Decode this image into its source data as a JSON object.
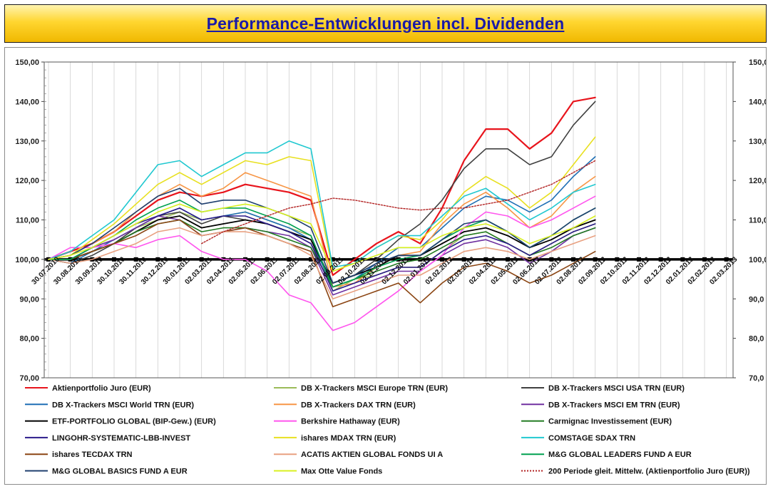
{
  "title": "Performance-Entwicklungen incl. Dividenden",
  "chart_data": {
    "type": "line",
    "ylim": [
      70,
      150
    ],
    "y_ticks_left": [
      "70,00",
      "80,00",
      "90,00",
      "100,00",
      "110,00",
      "120,00",
      "130,00",
      "140,00",
      "150,00"
    ],
    "y_ticks_right": [
      "70,0",
      "80,0",
      "90,0",
      "100,0",
      "110,0",
      "120,0",
      "130,0",
      "140,0",
      "150,0"
    ],
    "x_dates": [
      "30.07.2010",
      "30.08.2010",
      "30.09.2010",
      "30.10.2010",
      "30.11.2010",
      "30.12.2010",
      "30.01.2011",
      "02.03.2011",
      "02.04.2011",
      "02.05.2011",
      "02.06.2011",
      "02.07.2011",
      "02.08.2011",
      "02.09.2011",
      "02.10.2011",
      "02.11.2011",
      "02.12.2011",
      "02.01.2012",
      "02.02.2012",
      "02.03.2012",
      "02.04.2012",
      "02.05.2012",
      "02.06.2012",
      "02.07.2012",
      "02.08.2012",
      "02.09.2012",
      "02.10.2012",
      "02.11.2012",
      "02.12.2012",
      "02.01.2013",
      "02.02.2013",
      "02.03.2013"
    ],
    "grid": "vertical",
    "baseline": 100,
    "legend_position": "bottom",
    "series": [
      {
        "name": "Aktienportfolio Juro (EUR)",
        "color": "#e8141c",
        "width": 2.2,
        "values": [
          100,
          102,
          104,
          107,
          111,
          115,
          117,
          116,
          117,
          119,
          118,
          117,
          115,
          96,
          100,
          104,
          107,
          104,
          113,
          125,
          133,
          133,
          128,
          132,
          140,
          141,
          null,
          null,
          null,
          null,
          null,
          null
        ]
      },
      {
        "name": "DB X-Trackers MSCI Europe TRN (EUR)",
        "color": "#9bbb59",
        "width": 1.6,
        "values": [
          100,
          100,
          103,
          105,
          108,
          110,
          112,
          110,
          111,
          112,
          110,
          108,
          106,
          92,
          95,
          96,
          98,
          98,
          102,
          106,
          107,
          104,
          101,
          104,
          107,
          109,
          null,
          null,
          null,
          null,
          null,
          null
        ]
      },
      {
        "name": "DB X-Trackers MSCI USA TRN (EUR)",
        "color": "#404040",
        "width": 1.6,
        "values": [
          100,
          99,
          101,
          104,
          108,
          111,
          112,
          109,
          111,
          110,
          109,
          107,
          104,
          94,
          96,
          100,
          105,
          109,
          115,
          123,
          128,
          128,
          124,
          126,
          134,
          140,
          null,
          null,
          null,
          null,
          null,
          null
        ]
      },
      {
        "name": "DB X-Trackers MSCI World TRN (EUR)",
        "color": "#1f6fb5",
        "width": 1.6,
        "values": [
          100,
          99,
          102,
          105,
          108,
          111,
          113,
          110,
          111,
          112,
          110,
          108,
          105,
          93,
          95,
          99,
          103,
          103,
          108,
          113,
          116,
          115,
          112,
          115,
          121,
          126,
          null,
          null,
          null,
          null,
          null,
          null
        ]
      },
      {
        "name": "DB X-Trackers DAX TRN (EUR)",
        "color": "#f79646",
        "width": 1.6,
        "values": [
          100,
          101,
          104,
          107,
          112,
          116,
          119,
          116,
          118,
          122,
          120,
          118,
          116,
          93,
          94,
          98,
          101,
          102,
          109,
          114,
          117,
          113,
          108,
          111,
          117,
          121,
          null,
          null,
          null,
          null,
          null,
          null
        ]
      },
      {
        "name": "DB X-Trackers  MSCI EM TRN (EUR)",
        "color": "#7030a0",
        "width": 1.6,
        "values": [
          100,
          100,
          103,
          105,
          108,
          111,
          110,
          106,
          107,
          108,
          107,
          106,
          103,
          91,
          93,
          95,
          97,
          97,
          101,
          104,
          105,
          103,
          99,
          102,
          106,
          108,
          null,
          null,
          null,
          null,
          null,
          null
        ]
      },
      {
        "name": "ETF-PORTFOLIO GLOBAL (BIP-Gew.) (EUR)",
        "color": "#000000",
        "width": 1.8,
        "values": [
          100,
          100,
          102,
          104,
          107,
          110,
          111,
          108,
          109,
          110,
          109,
          107,
          105,
          94,
          96,
          98,
          101,
          101,
          104,
          107,
          108,
          106,
          103,
          105,
          108,
          110,
          null,
          null,
          null,
          null,
          null,
          null
        ]
      },
      {
        "name": "Berkshire Hathaway (EUR)",
        "color": "#ff55ee",
        "width": 1.6,
        "values": [
          100,
          103,
          103,
          104,
          103,
          105,
          106,
          102,
          100,
          100,
          97,
          91,
          89,
          82,
          84,
          88,
          92,
          97,
          101,
          108,
          112,
          111,
          108,
          110,
          113,
          116,
          null,
          null,
          null,
          null,
          null,
          null
        ]
      },
      {
        "name": "Carmignac Investissement (EUR)",
        "color": "#217a21",
        "width": 1.6,
        "values": [
          100,
          100,
          102,
          104,
          107,
          109,
          110,
          107,
          108,
          108,
          107,
          105,
          103,
          93,
          95,
          97,
          99,
          100,
          103,
          106,
          107,
          104,
          101,
          103,
          106,
          108,
          null,
          null,
          null,
          null,
          null,
          null
        ]
      },
      {
        "name": "LINGOHR-SYSTEMATIC-LBB-INVEST",
        "color": "#2a1a8a",
        "width": 1.6,
        "values": [
          100,
          100,
          103,
          106,
          109,
          111,
          113,
          110,
          111,
          111,
          109,
          107,
          104,
          92,
          94,
          96,
          98,
          98,
          102,
          105,
          106,
          104,
          101,
          104,
          107,
          109,
          null,
          null,
          null,
          null,
          null,
          null
        ]
      },
      {
        "name": "ishares MDAX TRN (EUR)",
        "color": "#e8e020",
        "width": 1.6,
        "values": [
          100,
          101,
          105,
          109,
          114,
          119,
          122,
          119,
          122,
          125,
          124,
          126,
          125,
          97,
          99,
          103,
          106,
          105,
          110,
          117,
          121,
          118,
          113,
          117,
          124,
          131,
          null,
          null,
          null,
          null,
          null,
          null
        ]
      },
      {
        "name": "COMSTAGE SDAX TRN",
        "color": "#20c8d0",
        "width": 1.6,
        "values": [
          100,
          102,
          106,
          110,
          117,
          124,
          125,
          121,
          124,
          127,
          127,
          130,
          128,
          98,
          99,
          103,
          106,
          106,
          111,
          116,
          118,
          114,
          110,
          113,
          117,
          119,
          null,
          null,
          null,
          null,
          null,
          null
        ]
      },
      {
        "name": "ishares TECDAX TRN",
        "color": "#8b4513",
        "width": 1.6,
        "values": [
          100,
          100,
          102,
          104,
          106,
          109,
          110,
          106,
          107,
          108,
          106,
          104,
          102,
          88,
          90,
          92,
          94,
          89,
          94,
          98,
          99,
          97,
          94,
          96,
          99,
          102,
          null,
          null,
          null,
          null,
          null,
          null
        ]
      },
      {
        "name": "ACATIS AKTIEN GLOBAL FONDS UI A",
        "color": "#e8a080",
        "width": 1.6,
        "values": [
          100,
          99,
          100,
          102,
          104,
          107,
          108,
          106,
          107,
          107,
          106,
          104,
          101,
          90,
          92,
          94,
          96,
          96,
          99,
          102,
          103,
          102,
          100,
          102,
          104,
          106,
          null,
          null,
          null,
          null,
          null,
          null
        ]
      },
      {
        "name": "M&G GLOBAL LEADERS FUND A EUR",
        "color": "#00a050",
        "width": 1.6,
        "values": [
          100,
          100,
          103,
          106,
          110,
          113,
          115,
          112,
          113,
          113,
          111,
          109,
          106,
          93,
          95,
          98,
          100,
          101,
          105,
          108,
          110,
          107,
          103,
          106,
          110,
          113,
          null,
          null,
          null,
          null,
          null,
          null
        ]
      },
      {
        "name": "M&G GLOBAL BASICS FUND A EUR",
        "color": "#1f3f6f",
        "width": 1.6,
        "values": [
          100,
          101,
          104,
          108,
          112,
          116,
          118,
          114,
          115,
          115,
          113,
          111,
          108,
          94,
          96,
          99,
          101,
          101,
          105,
          109,
          110,
          107,
          103,
          106,
          110,
          113,
          null,
          null,
          null,
          null,
          null,
          null
        ]
      },
      {
        "name": "Max Otte Value Fonds",
        "color": "#d8f020",
        "width": 1.6,
        "values": [
          100,
          101,
          103,
          106,
          109,
          112,
          114,
          112,
          113,
          114,
          113,
          111,
          109,
          97,
          99,
          101,
          103,
          103,
          106,
          108,
          109,
          107,
          104,
          106,
          108,
          111,
          null,
          null,
          null,
          null,
          null,
          null
        ]
      },
      {
        "name": "200 Periode gleit. Mittelw. (Aktienportfolio  Juro (EUR))",
        "color": "#b22222",
        "width": 1.4,
        "dash": "2,2",
        "values": [
          null,
          null,
          null,
          null,
          null,
          null,
          null,
          104,
          107,
          109,
          111,
          113,
          114,
          115.5,
          115,
          114,
          113,
          112.5,
          113,
          113,
          114,
          115,
          117,
          119,
          122,
          125,
          null,
          null,
          null,
          null,
          null,
          null
        ]
      }
    ]
  }
}
